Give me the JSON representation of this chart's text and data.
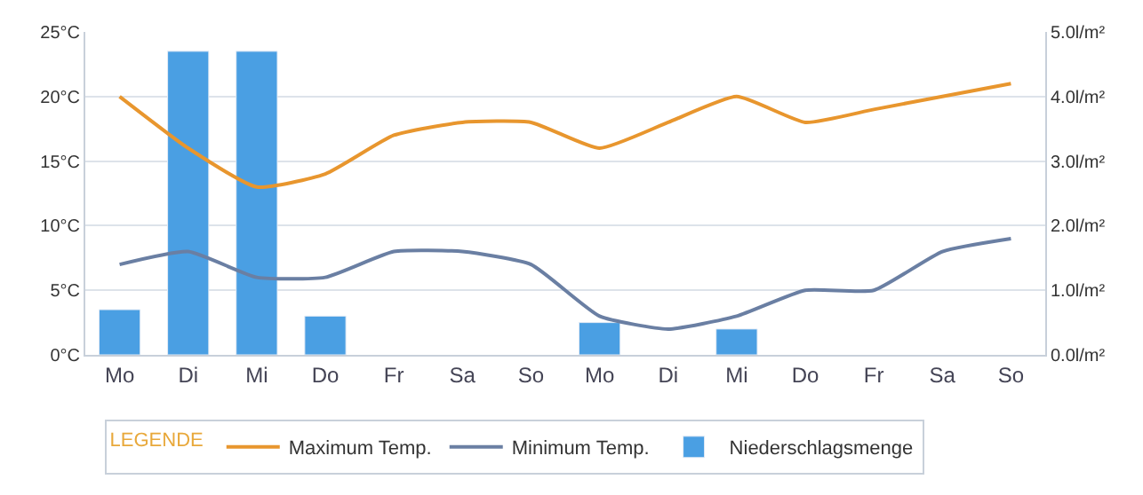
{
  "chart_data": {
    "type": "line",
    "legend_title": "LEGENDE",
    "legend": "bottom",
    "grid": "y",
    "marker": "none",
    "line_style": "solid",
    "categories": [
      "Mo",
      "Di",
      "Mi",
      "Do",
      "Fr",
      "Sa",
      "So",
      "Mo",
      "Di",
      "Mi",
      "Do",
      "Fr",
      "Sa",
      "So"
    ],
    "series": [
      {
        "name": "Maximum Temp.",
        "color": "#e8962e",
        "values": [
          20,
          16,
          13,
          14,
          17,
          18,
          18,
          16,
          18,
          20,
          18,
          19,
          20,
          21
        ]
      },
      {
        "name": "Minimum Temp.",
        "color": "#6a7fa3",
        "values": [
          7,
          8,
          6,
          6,
          8,
          8,
          7,
          3,
          2,
          3,
          5,
          5,
          8,
          9
        ]
      },
      {
        "name": "Niederschlagsmenge",
        "color": "#4a9fe3",
        "type": "bar",
        "axis": "y2",
        "values": [
          0.7,
          4.7,
          4.7,
          0.6,
          null,
          null,
          null,
          0.5,
          null,
          0.4,
          null,
          null,
          null,
          null
        ]
      }
    ],
    "ylim": [
      0,
      25
    ],
    "yticks": [
      {
        "value": 0,
        "label": "0°C"
      },
      {
        "value": 5,
        "label": "5°C"
      },
      {
        "value": 10,
        "label": "10°C"
      },
      {
        "value": 15,
        "label": "15°C"
      },
      {
        "value": 20,
        "label": "20°C"
      },
      {
        "value": 25,
        "label": "25°C"
      }
    ],
    "y2lim": [
      0,
      5
    ],
    "y2ticks": [
      {
        "value": 0,
        "label": "0.0l/m²"
      },
      {
        "value": 1,
        "label": "1.0l/m²"
      },
      {
        "value": 2,
        "label": "2.0l/m²"
      },
      {
        "value": 3,
        "label": "3.0l/m²"
      },
      {
        "value": 4,
        "label": "4.0l/m²"
      },
      {
        "value": 5,
        "label": "5.0l/m²"
      }
    ]
  }
}
